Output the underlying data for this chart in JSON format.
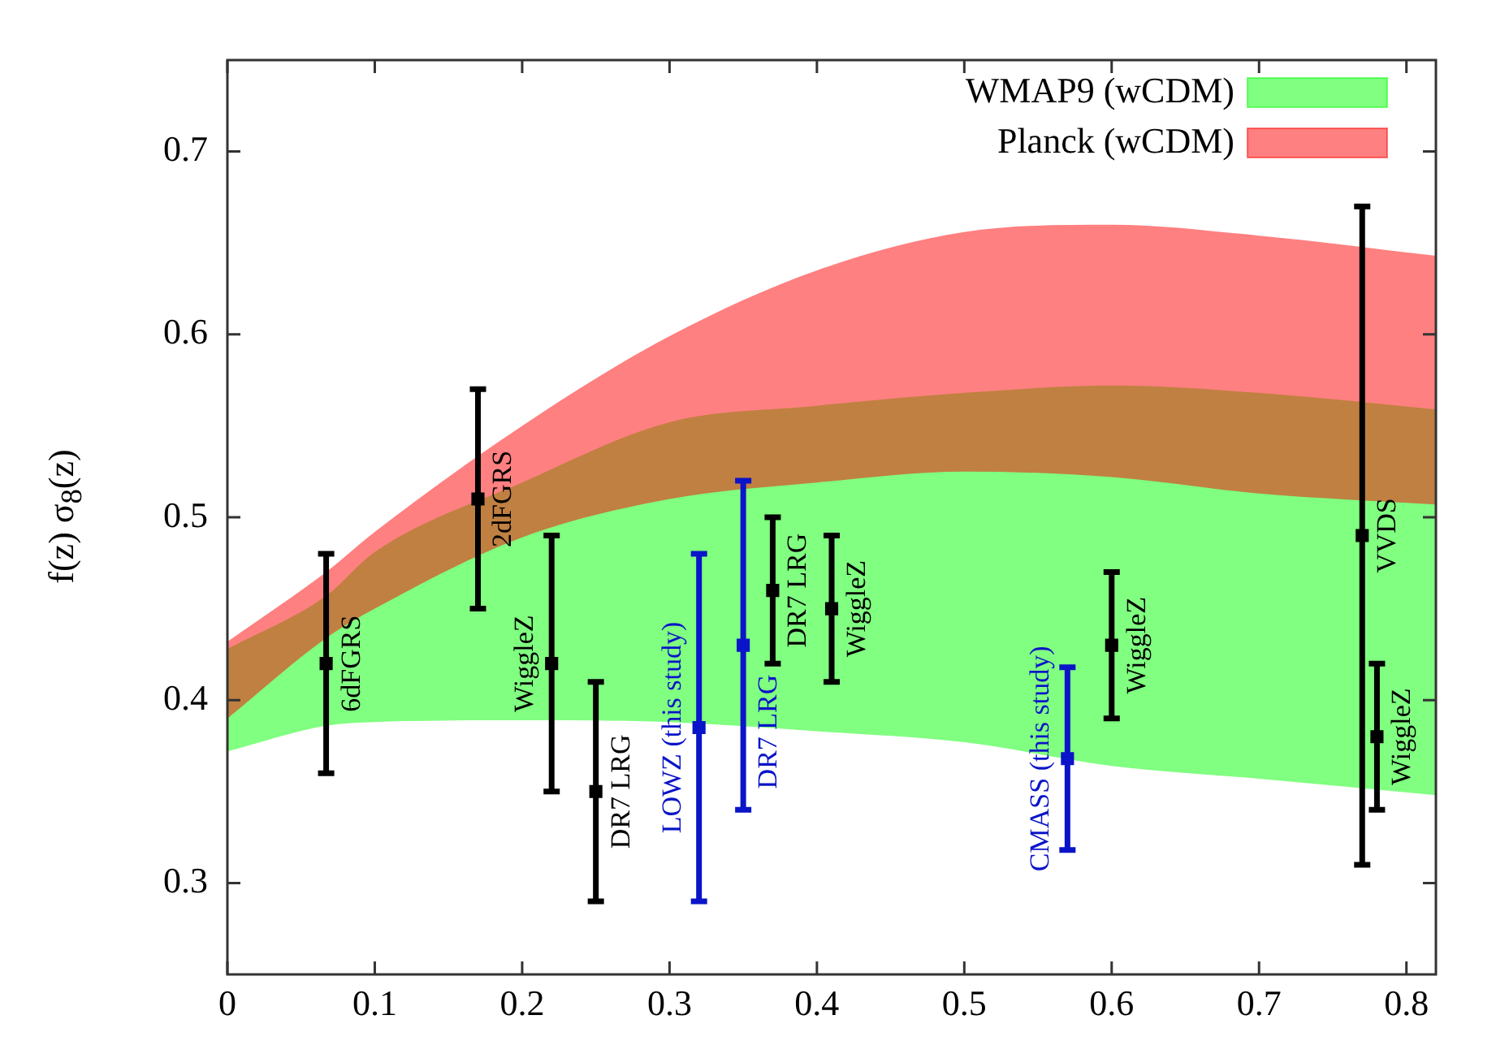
{
  "chart_data": {
    "type": "scatter",
    "ylabel": "f(z) σ$_{8}$(z)",
    "xlim": [
      0,
      0.82
    ],
    "xticks": [
      0,
      0.1,
      0.2,
      0.3,
      0.4,
      0.5,
      0.6,
      0.7,
      0.8
    ],
    "ylim": [
      0.25,
      0.75
    ],
    "yticks": [
      0.3,
      0.4,
      0.5,
      0.6,
      0.7
    ],
    "grid": false,
    "legend": "top right",
    "marker": "square",
    "series": [
      {
        "name": "WMAP9 (wCDM)",
        "type": "area",
        "marker": "none",
        "color": "#80ff80",
        "x": [
          0,
          0.067,
          0.1,
          0.2,
          0.3,
          0.4,
          0.5,
          0.6,
          0.7,
          0.82
        ],
        "lower": [
          0.372,
          0.386,
          0.388,
          0.389,
          0.388,
          0.383,
          0.377,
          0.364,
          0.357,
          0.348
        ],
        "upper": [
          0.428,
          0.457,
          0.481,
          0.519,
          0.552,
          0.561,
          0.568,
          0.572,
          0.568,
          0.559
        ],
        "values": [
          null,
          null,
          null,
          null,
          null,
          null,
          null,
          null,
          null,
          null
        ]
      },
      {
        "name": "Planck (wCDM)",
        "type": "area",
        "marker": "none",
        "color": "#ff8080",
        "x": [
          0,
          0.067,
          0.1,
          0.2,
          0.3,
          0.4,
          0.5,
          0.6,
          0.7,
          0.82
        ],
        "lower": [
          0.39,
          0.434,
          0.45,
          0.489,
          0.51,
          0.519,
          0.525,
          0.522,
          0.513,
          0.507
        ],
        "upper": [
          0.432,
          0.47,
          0.492,
          0.55,
          0.599,
          0.635,
          0.656,
          0.66,
          0.654,
          0.643
        ],
        "values": [
          null,
          null,
          null,
          null,
          null,
          null,
          null,
          null,
          null,
          null
        ]
      },
      {
        "color": "#000000",
        "x": [
          0.067,
          0.17,
          0.22,
          0.25,
          0.37,
          0.41,
          0.6,
          0.77,
          0.78
        ],
        "values": [
          0.42,
          0.51,
          0.42,
          0.35,
          0.46,
          0.45,
          0.43,
          0.49,
          0.38
        ],
        "errors": [
          [
            0.36,
            0.48
          ],
          [
            0.45,
            0.57
          ],
          [
            0.35,
            0.49
          ],
          [
            0.29,
            0.41
          ],
          [
            0.42,
            0.5
          ],
          [
            0.41,
            0.49
          ],
          [
            0.39,
            0.47
          ],
          [
            0.31,
            0.67
          ],
          [
            0.34,
            0.42
          ]
        ]
      },
      {
        "color": "#0a14c8",
        "x": [
          0.32,
          0.35,
          0.57
        ],
        "values": [
          0.385,
          0.43,
          0.368
        ],
        "errors": [
          [
            0.29,
            0.48
          ],
          [
            0.34,
            0.52
          ],
          [
            0.318,
            0.418
          ]
        ]
      }
    ],
    "annotations": [
      {
        "text": "6dFGRS",
        "x": 0.067,
        "y": 0.42
      },
      {
        "text": "2dFGRS",
        "x": 0.17,
        "y": 0.51
      },
      {
        "text": "WiggleZ",
        "x": 0.22,
        "y": 0.42
      },
      {
        "text": "DR7 LRG",
        "x": 0.25,
        "y": 0.35
      },
      {
        "text": "LOWZ (this study)",
        "x": 0.32,
        "y": 0.385
      },
      {
        "text": "DR7 LRG",
        "x": 0.35,
        "y": 0.43
      },
      {
        "text": "DR7 LRG",
        "x": 0.37,
        "y": 0.46
      },
      {
        "text": "WiggleZ",
        "x": 0.41,
        "y": 0.45
      },
      {
        "text": "CMASS (this study)",
        "x": 0.57,
        "y": 0.368
      },
      {
        "text": "WiggleZ",
        "x": 0.6,
        "y": 0.43
      },
      {
        "text": "VVDS",
        "x": 0.77,
        "y": 0.49
      },
      {
        "text": "WiggleZ",
        "x": 0.78,
        "y": 0.38
      }
    ]
  }
}
